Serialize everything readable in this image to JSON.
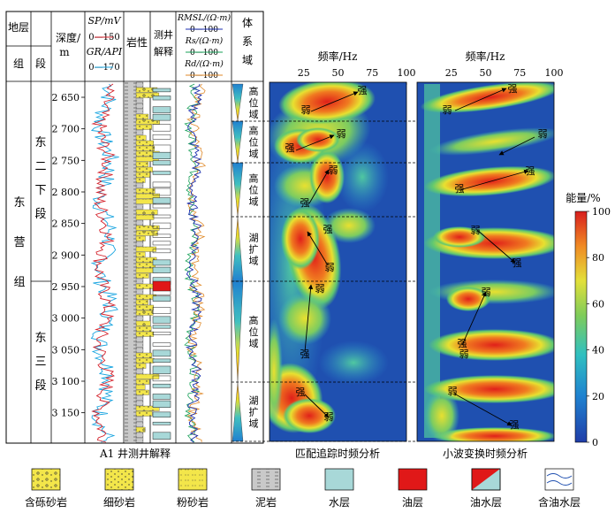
{
  "header": {
    "stratum": "地层",
    "group": "组",
    "section": "段",
    "depth_l1": "深度/",
    "depth_l2": "m",
    "sp": "SP/mV",
    "sp_scale": "0—150",
    "gr": "GR/API",
    "gr_scale": "0—170",
    "lith": "岩性",
    "interp_l1": "测井",
    "interp_l2": "解释",
    "rmsl": "RMSL/(Ω·m)",
    "rmsl_scale": "0—100",
    "rs": "Rs/(Ω·m)",
    "rs_scale": "0—100",
    "rd": "Rd/(Ω·m)",
    "rd_scale": "0—100",
    "systems_tract": "体系域"
  },
  "strata": {
    "formation": "东营组",
    "member_upper": "东二下段",
    "member_lower": "东三段"
  },
  "depth_ticks": [
    "2 650",
    "2 700",
    "2 750",
    "2 800",
    "2 850",
    "2 900",
    "2 950",
    "3 000",
    "3 050",
    "3 100",
    "3 150"
  ],
  "systems_tracts": [
    "高位域",
    "高位域",
    "高位域",
    "湖扩域",
    "高位域",
    "湖扩域"
  ],
  "panels": {
    "left": {
      "title": "A1 井测井解释"
    },
    "mp": {
      "title": "匹配追踪时频分析",
      "freq_label": "频率/Hz",
      "ticks": [
        "25",
        "50",
        "75",
        "100"
      ],
      "annotations": [
        {
          "text": "弱",
          "kind": "weak"
        },
        {
          "text": "强",
          "kind": "strong"
        },
        {
          "text": "强",
          "kind": "strong"
        },
        {
          "text": "弱",
          "kind": "weak"
        },
        {
          "text": "弱",
          "kind": "weak"
        },
        {
          "text": "强",
          "kind": "strong"
        },
        {
          "text": "强",
          "kind": "strong"
        },
        {
          "text": "弱",
          "kind": "weak"
        },
        {
          "text": "弱",
          "kind": "weak"
        },
        {
          "text": "强",
          "kind": "strong"
        },
        {
          "text": "强",
          "kind": "strong"
        },
        {
          "text": "弱",
          "kind": "weak"
        }
      ]
    },
    "wt": {
      "title": "小波变换时频分析",
      "freq_label": "频率/Hz",
      "ticks": [
        "25",
        "50",
        "75",
        "100"
      ],
      "annotations": [
        {
          "text": "强",
          "kind": "strong"
        },
        {
          "text": "弱",
          "kind": "weak"
        },
        {
          "text": "弱",
          "kind": "weak"
        },
        {
          "text": "强",
          "kind": "strong"
        },
        {
          "text": "强",
          "kind": "strong"
        },
        {
          "text": "弱",
          "kind": "weak"
        },
        {
          "text": "强",
          "kind": "strong"
        },
        {
          "text": "弱",
          "kind": "weak"
        },
        {
          "text": "强",
          "kind": "strong"
        },
        {
          "text": "弱",
          "kind": "weak"
        },
        {
          "text": "强",
          "kind": "strong"
        },
        {
          "text": "弱",
          "kind": "weak"
        }
      ]
    }
  },
  "colorbar": {
    "label": "能量/%",
    "ticks": [
      "100",
      "80",
      "60",
      "40",
      "20",
      "0"
    ]
  },
  "legend": [
    {
      "label": "含砾砂岩",
      "swatch": "pebbly-sandstone"
    },
    {
      "label": "细砂岩",
      "swatch": "fine-sandstone"
    },
    {
      "label": "粉砂岩",
      "swatch": "siltstone"
    },
    {
      "label": "泥岩",
      "swatch": "mudstone"
    },
    {
      "label": "水层",
      "swatch": "water-layer"
    },
    {
      "label": "油层",
      "swatch": "oil-layer"
    },
    {
      "label": "油水层",
      "swatch": "oil-water-layer"
    },
    {
      "label": "含油水层",
      "swatch": "oil-bearing-water-layer"
    }
  ],
  "colors": {
    "sp": "#d4202a",
    "gr": "#1aa5e0",
    "rmsl": "#1c2fb0",
    "rs": "#18a058",
    "rd": "#e08a2a",
    "sand": "#f3e64a",
    "water": "#a8d8d8",
    "oil": "#e01818",
    "mud": "#c9c9c9"
  }
}
